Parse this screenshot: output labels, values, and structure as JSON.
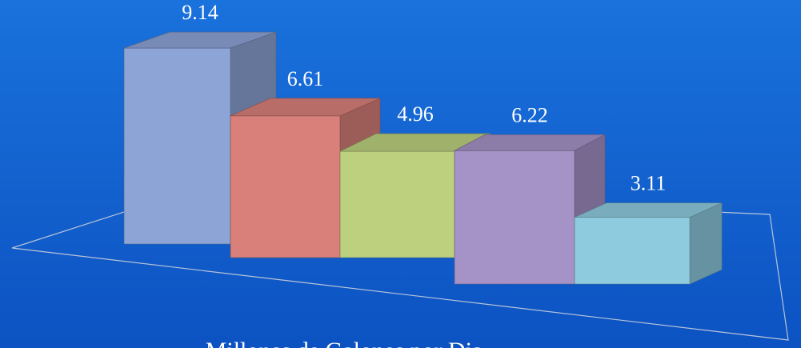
{
  "chart_data": {
    "type": "bar",
    "title": "Millones de Galones por Dia",
    "values": [
      9.14,
      6.61,
      4.96,
      6.22,
      3.11
    ],
    "colors": [
      "#8ca4d6",
      "#d9807a",
      "#bcd07e",
      "#a592c6",
      "#8ecbdf"
    ]
  }
}
